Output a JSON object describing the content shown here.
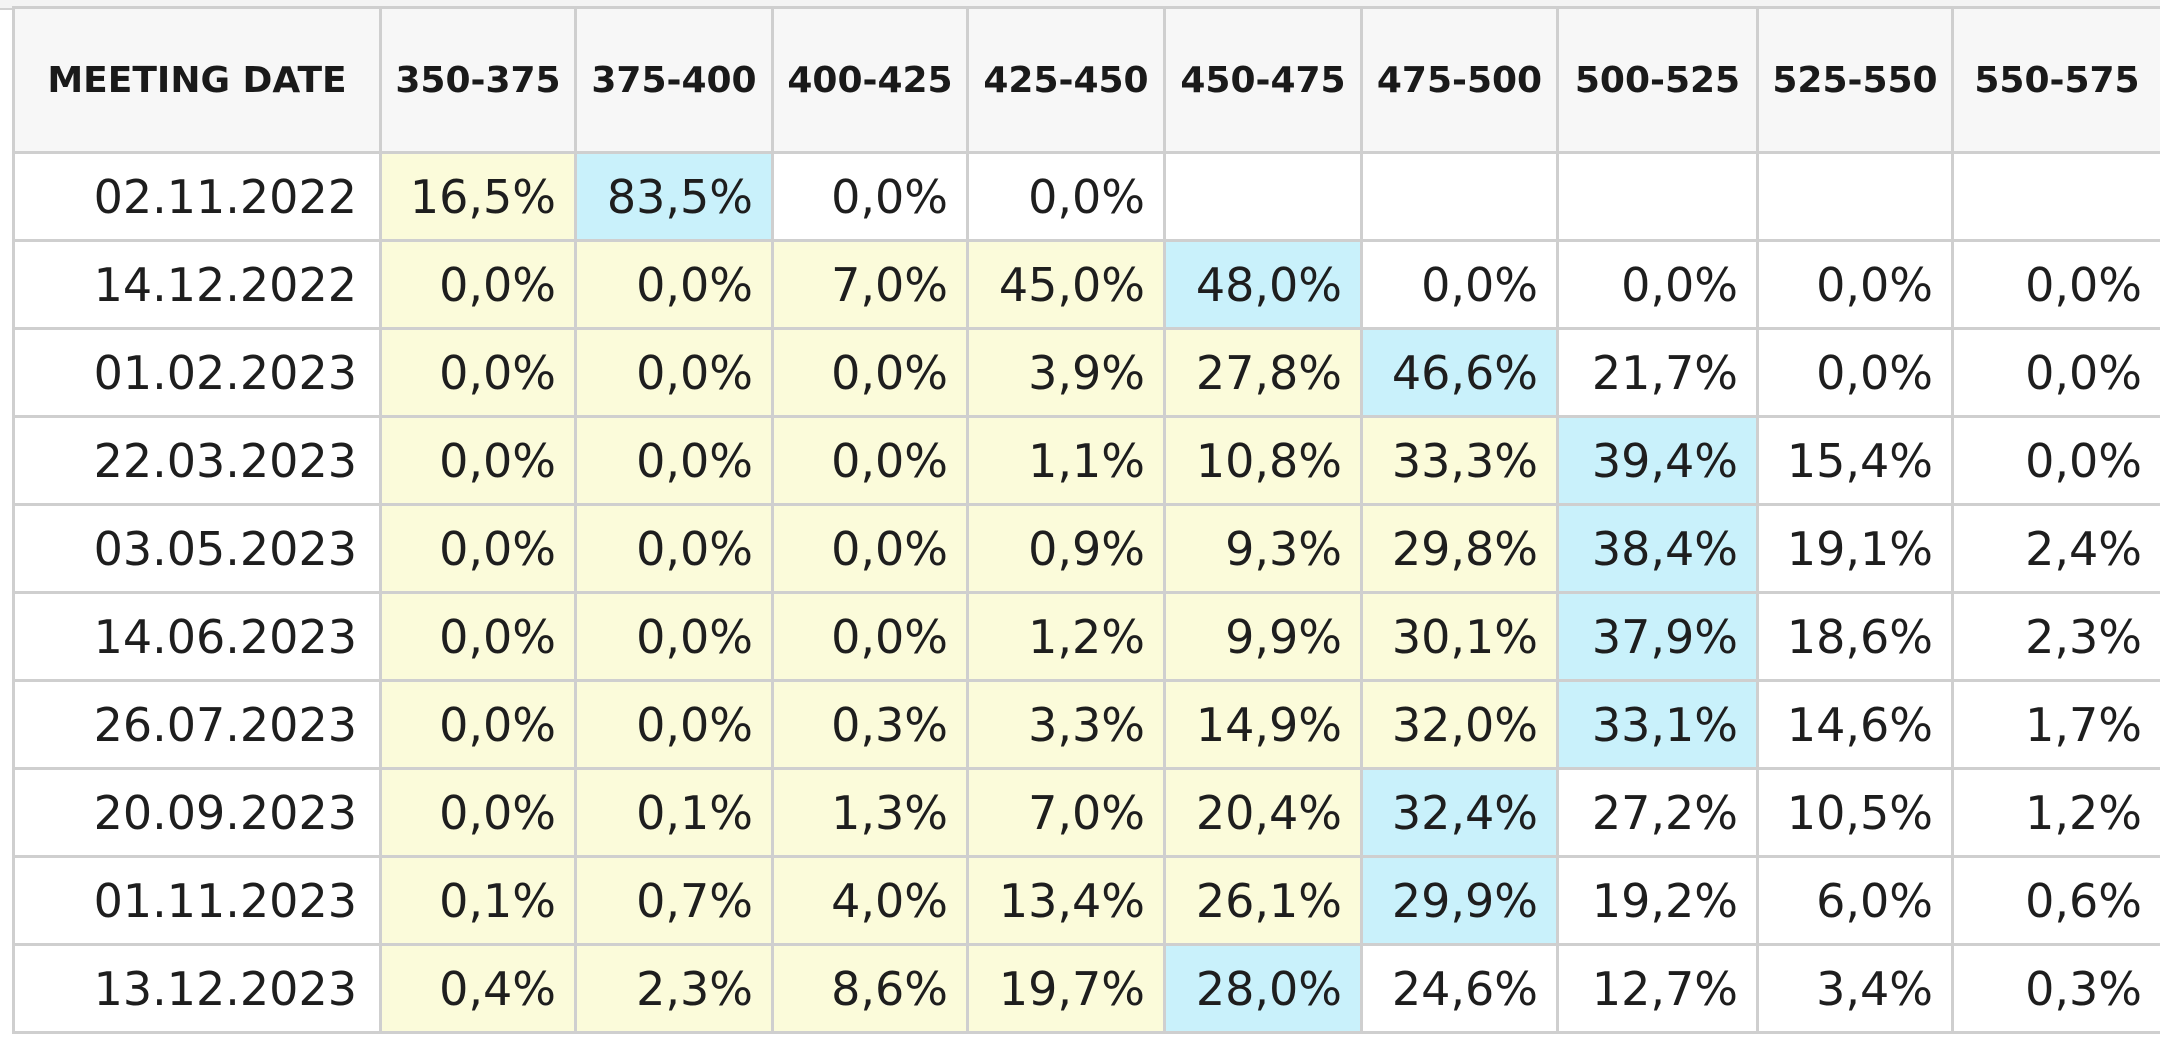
{
  "table": {
    "headers": [
      "MEETING DATE",
      "350-375",
      "375-400",
      "400-425",
      "425-450",
      "450-475",
      "475-500",
      "500-525",
      "525-550",
      "550-575"
    ],
    "rows": [
      {
        "date": "02.11.2022",
        "cells": [
          "16,5%",
          "83,5%",
          "0,0%",
          "0,0%",
          "",
          "",
          "",
          "",
          ""
        ]
      },
      {
        "date": "14.12.2022",
        "cells": [
          "0,0%",
          "0,0%",
          "7,0%",
          "45,0%",
          "48,0%",
          "0,0%",
          "0,0%",
          "0,0%",
          "0,0%"
        ]
      },
      {
        "date": "01.02.2023",
        "cells": [
          "0,0%",
          "0,0%",
          "0,0%",
          "3,9%",
          "27,8%",
          "46,6%",
          "21,7%",
          "0,0%",
          "0,0%"
        ]
      },
      {
        "date": "22.03.2023",
        "cells": [
          "0,0%",
          "0,0%",
          "0,0%",
          "1,1%",
          "10,8%",
          "33,3%",
          "39,4%",
          "15,4%",
          "0,0%"
        ]
      },
      {
        "date": "03.05.2023",
        "cells": [
          "0,0%",
          "0,0%",
          "0,0%",
          "0,9%",
          "9,3%",
          "29,8%",
          "38,4%",
          "19,1%",
          "2,4%"
        ]
      },
      {
        "date": "14.06.2023",
        "cells": [
          "0,0%",
          "0,0%",
          "0,0%",
          "1,2%",
          "9,9%",
          "30,1%",
          "37,9%",
          "18,6%",
          "2,3%"
        ]
      },
      {
        "date": "26.07.2023",
        "cells": [
          "0,0%",
          "0,0%",
          "0,3%",
          "3,3%",
          "14,9%",
          "32,0%",
          "33,1%",
          "14,6%",
          "1,7%"
        ]
      },
      {
        "date": "20.09.2023",
        "cells": [
          "0,0%",
          "0,1%",
          "1,3%",
          "7,0%",
          "20,4%",
          "32,4%",
          "27,2%",
          "10,5%",
          "1,2%"
        ]
      },
      {
        "date": "01.11.2023",
        "cells": [
          "0,1%",
          "0,7%",
          "4,0%",
          "13,4%",
          "26,1%",
          "29,9%",
          "19,2%",
          "6,0%",
          "0,6%"
        ]
      },
      {
        "date": "13.12.2023",
        "cells": [
          "0,4%",
          "2,3%",
          "8,6%",
          "19,7%",
          "28,0%",
          "24,6%",
          "12,7%",
          "3,4%",
          "0,3%"
        ]
      }
    ]
  },
  "colors": {
    "below_max": "#fbfbda",
    "max": "#c9f1fb",
    "above_max": "#ffffff",
    "border": "#cfcfcf",
    "header_bg": "#f7f7f7"
  }
}
